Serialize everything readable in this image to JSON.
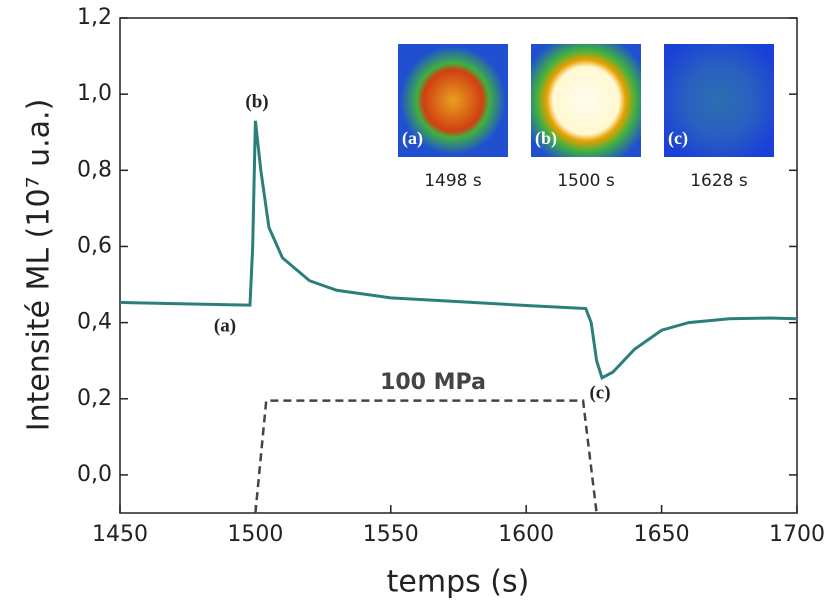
{
  "chart_data": {
    "type": "line",
    "x_label": "temps (s)",
    "y_label": "Intensité ML (10⁷ u.a.)",
    "x": [
      1450,
      1470,
      1490,
      1498,
      1499,
      1500,
      1502,
      1505,
      1510,
      1520,
      1530,
      1550,
      1575,
      1600,
      1622,
      1624,
      1626,
      1628,
      1632,
      1640,
      1650,
      1660,
      1675,
      1690,
      1700
    ],
    "series": [
      {
        "name": "ML",
        "color": "#2a7f7a",
        "values": [
          0.453,
          0.45,
          0.447,
          0.446,
          0.6,
          0.93,
          0.8,
          0.65,
          0.57,
          0.51,
          0.485,
          0.465,
          0.455,
          0.445,
          0.437,
          0.4,
          0.3,
          0.255,
          0.27,
          0.33,
          0.38,
          0.4,
          0.41,
          0.412,
          0.41
        ]
      }
    ],
    "pressure": {
      "label": "100 MPa",
      "color": "#444444",
      "x": [
        1500,
        1504,
        1621,
        1626
      ],
      "values": [
        -0.1,
        0.195,
        0.195,
        -0.1
      ]
    },
    "annotations": [
      "(a)",
      "(b)",
      "(c)"
    ],
    "insets": [
      {
        "label": "(a)",
        "caption": "1498 s"
      },
      {
        "label": "(b)",
        "caption": "1500 s"
      },
      {
        "label": "(c)",
        "caption": "1628 s"
      }
    ],
    "xlim": [
      1450,
      1700
    ],
    "xticks": [
      1450,
      1500,
      1550,
      1600,
      1650,
      1700
    ],
    "ylim": [
      -0.1,
      1.2
    ],
    "yticks": [
      {
        "value": 0.0,
        "label": "0,0"
      },
      {
        "value": 0.2,
        "label": "0,2"
      },
      {
        "value": 0.4,
        "label": "0,4"
      },
      {
        "value": 0.6,
        "label": "0,6"
      },
      {
        "value": 0.8,
        "label": "0,8"
      },
      {
        "value": 1.0,
        "label": "1,0"
      },
      {
        "value": 1.2,
        "label": "1,2"
      }
    ]
  }
}
